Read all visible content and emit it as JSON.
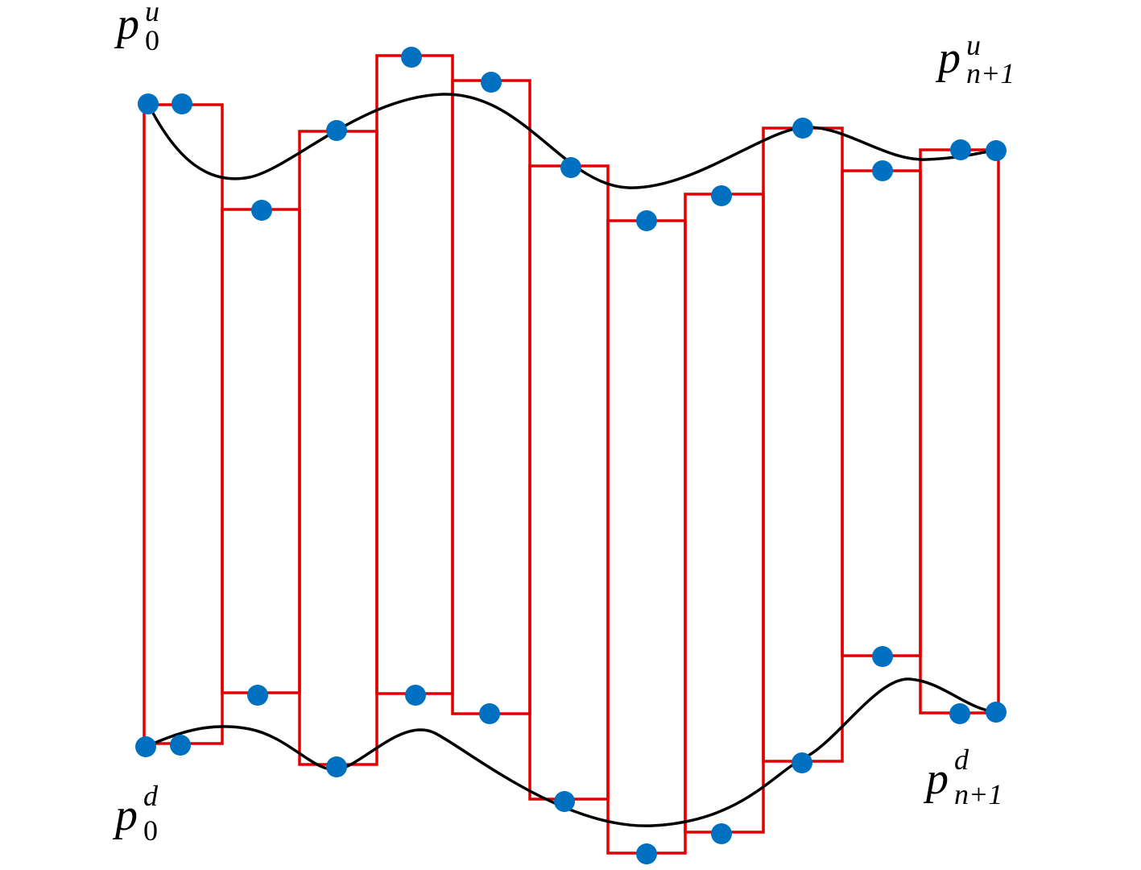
{
  "labels": [
    {
      "base": "p",
      "sup": "u",
      "sub": "0"
    },
    {
      "base": "p",
      "sup": "u",
      "sub": "n+1"
    },
    {
      "base": "p",
      "sup": "d",
      "sub": "0"
    },
    {
      "base": "p",
      "sup": "d",
      "sub": "n+1"
    }
  ]
}
